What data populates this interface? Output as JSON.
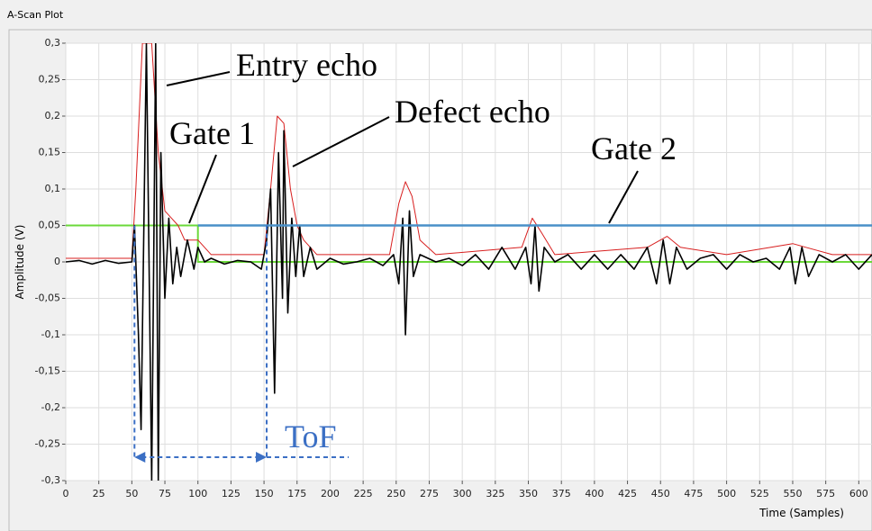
{
  "chart_data": {
    "type": "line",
    "title": "A-Scan Plot",
    "x_label": "Time (Samples)",
    "y_label": "Amplitude (V)",
    "xlim": [
      0,
      610
    ],
    "ylim": [
      -0.3,
      0.3
    ],
    "xticks": [
      0,
      25,
      50,
      75,
      100,
      125,
      150,
      175,
      200,
      225,
      250,
      275,
      300,
      325,
      350,
      375,
      400,
      425,
      450,
      475,
      500,
      525,
      550,
      575,
      600
    ],
    "yticks": [
      {
        "value": -0.3,
        "label": "-0,3"
      },
      {
        "value": -0.25,
        "label": "-0,25"
      },
      {
        "value": -0.2,
        "label": "-0,2"
      },
      {
        "value": -0.15,
        "label": "-0,15"
      },
      {
        "value": -0.1,
        "label": "-0,1"
      },
      {
        "value": -0.05,
        "label": "-0,05"
      },
      0,
      {
        "value": 0.05,
        "label": "0,05"
      },
      {
        "value": 0.1,
        "label": "0,1"
      },
      {
        "value": 0.15,
        "label": "0,15"
      },
      {
        "value": 0.2,
        "label": "0,2"
      },
      {
        "value": 0.25,
        "label": "0,25"
      },
      {
        "value": 0.3,
        "label": "0,3"
      }
    ],
    "grid": true,
    "series": [
      {
        "color": "#6bd93a",
        "width": 2,
        "x": [
          0,
          100,
          100,
          610
        ],
        "values": [
          0.05,
          0.05,
          0,
          0
        ]
      },
      {
        "color": "#d81f1f",
        "width": 1,
        "x": [
          0,
          50,
          53,
          58,
          65,
          70,
          75,
          80,
          85,
          90,
          100,
          110,
          150,
          155,
          160,
          165,
          170,
          175,
          180,
          190,
          245,
          252,
          257,
          262,
          268,
          280,
          345,
          353,
          360,
          370,
          440,
          455,
          465,
          500,
          550,
          560,
          580,
          610
        ],
        "values": [
          0.005,
          0.005,
          0.1,
          0.3,
          0.3,
          0.15,
          0.07,
          0.06,
          0.05,
          0.03,
          0.03,
          0.01,
          0.01,
          0.1,
          0.2,
          0.19,
          0.1,
          0.05,
          0.03,
          0.01,
          0.01,
          0.08,
          0.11,
          0.09,
          0.03,
          0.01,
          0.02,
          0.06,
          0.04,
          0.01,
          0.02,
          0.035,
          0.02,
          0.01,
          0.025,
          0.02,
          0.01,
          0.01
        ]
      },
      {
        "color": "#000000",
        "width": 1.6,
        "x": [
          0,
          10,
          20,
          30,
          40,
          50,
          52,
          55,
          57,
          61,
          65,
          68,
          70,
          72,
          75,
          78,
          81,
          84,
          87,
          92,
          97,
          100,
          105,
          110,
          120,
          130,
          140,
          148,
          152,
          155,
          158,
          161,
          164,
          165,
          168,
          171,
          174,
          177,
          180,
          185,
          190,
          200,
          210,
          220,
          230,
          240,
          248,
          252,
          255,
          257,
          260,
          263,
          268,
          280,
          290,
          300,
          310,
          320,
          330,
          340,
          348,
          352,
          355,
          358,
          362,
          370,
          380,
          390,
          400,
          410,
          420,
          430,
          440,
          447,
          452,
          457,
          462,
          470,
          480,
          490,
          500,
          510,
          520,
          530,
          540,
          548,
          552,
          557,
          562,
          570,
          580,
          590,
          600,
          610
        ],
        "values": [
          0,
          0.002,
          -0.003,
          0.002,
          -0.002,
          0,
          0.05,
          -0.1,
          -0.23,
          0.3,
          -0.3,
          0.3,
          -0.3,
          0.15,
          -0.05,
          0.06,
          -0.03,
          0.02,
          -0.02,
          0.03,
          -0.01,
          0.02,
          0,
          0.005,
          -0.003,
          0.002,
          0,
          -0.01,
          0.03,
          0.1,
          -0.18,
          0.15,
          -0.05,
          0.18,
          -0.07,
          0.06,
          -0.02,
          0.05,
          -0.02,
          0.02,
          -0.01,
          0.005,
          -0.003,
          0,
          0.005,
          -0.005,
          0.01,
          -0.03,
          0.06,
          -0.1,
          0.07,
          -0.02,
          0.01,
          0,
          0.005,
          -0.005,
          0.01,
          -0.01,
          0.02,
          -0.01,
          0.02,
          -0.03,
          0.05,
          -0.04,
          0.02,
          0,
          0.01,
          -0.01,
          0.01,
          -0.01,
          0.01,
          -0.01,
          0.02,
          -0.03,
          0.03,
          -0.03,
          0.02,
          -0.01,
          0.005,
          0.01,
          -0.01,
          0.01,
          0,
          0.005,
          -0.01,
          0.02,
          -0.03,
          0.02,
          -0.02,
          0.01,
          0,
          0.01,
          -0.01,
          0.01
        ]
      },
      {
        "color": "#4a90c8",
        "width": 2.5,
        "x": [
          100,
          610
        ],
        "values": [
          0.05,
          0.05
        ]
      }
    ],
    "tof": {
      "start": 52,
      "end": 152,
      "label": "ToF"
    },
    "annotations": [
      "Entry echo",
      "Defect echo",
      "Gate 1",
      "Gate 2"
    ]
  }
}
